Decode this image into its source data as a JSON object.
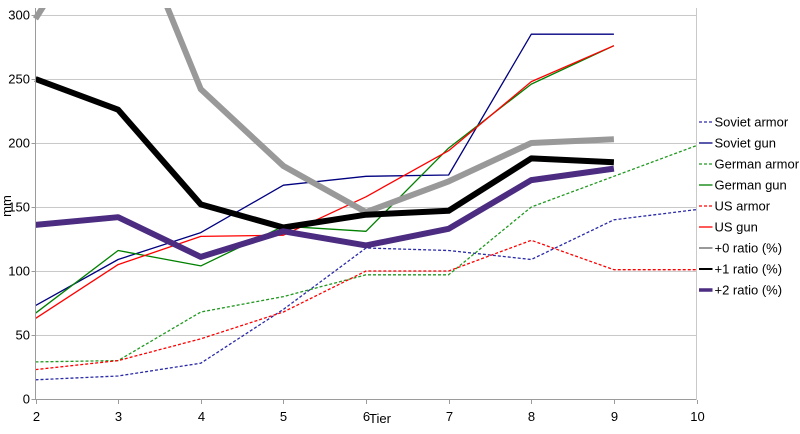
{
  "chart_data": {
    "type": "line",
    "title": "",
    "xlabel": "Tier",
    "ylabel": "mm",
    "x": [
      2,
      3,
      4,
      5,
      6,
      7,
      8,
      9,
      10
    ],
    "xlim": [
      2,
      10
    ],
    "ylim": [
      0,
      300
    ],
    "yticks": [
      0,
      50,
      100,
      150,
      200,
      250,
      300
    ],
    "xticks": [
      2,
      3,
      4,
      5,
      6,
      7,
      8,
      9,
      10
    ],
    "grid": "horizontal",
    "legend_position": "right",
    "colors": {
      "soviet": "#000080",
      "soviet_dashed": "#2A2AA8",
      "german": "#008000",
      "german_dashed": "#229922",
      "us": "#FF0000",
      "ratio0": "#999999",
      "ratio1": "#000000",
      "ratio2": "#4B2C80",
      "grid": "#C9C9C9",
      "axis": "#9B9B9B"
    },
    "series": [
      {
        "name": "Soviet armor",
        "color": "#2A2AA8",
        "dashed": true,
        "thick": false,
        "values": [
          15,
          18,
          28,
          70,
          118,
          116,
          109,
          140,
          148
        ]
      },
      {
        "name": "Soviet gun",
        "color": "#000080",
        "dashed": false,
        "thick": false,
        "values": [
          73,
          109,
          130,
          167,
          174,
          175,
          285,
          285,
          null
        ]
      },
      {
        "name": "German armor",
        "color": "#229922",
        "dashed": true,
        "thick": false,
        "values": [
          29,
          30,
          68,
          80,
          97,
          97,
          150,
          174,
          198
        ]
      },
      {
        "name": "German gun",
        "color": "#008000",
        "dashed": false,
        "thick": false,
        "values": [
          67,
          116,
          104,
          135,
          131,
          196,
          246,
          276,
          null
        ]
      },
      {
        "name": "US armor",
        "color": "#FF0000",
        "dashed": true,
        "thick": false,
        "values": [
          23,
          30,
          47,
          68,
          100,
          100,
          124,
          101,
          101
        ]
      },
      {
        "name": "US gun",
        "color": "#FF0000",
        "dashed": false,
        "thick": false,
        "values": [
          63,
          105,
          127,
          128,
          158,
          194,
          248,
          276,
          null
        ]
      },
      {
        "name": "+0 ratio (%)",
        "color": "#999999",
        "dashed": false,
        "thick": true,
        "values": [
          297,
          400,
          242,
          182,
          146,
          170,
          200,
          203,
          null
        ]
      },
      {
        "name": "+1 ratio (%)",
        "color": "#000000",
        "dashed": false,
        "thick": true,
        "values": [
          250,
          226,
          152,
          134,
          144,
          147,
          188,
          185,
          null
        ]
      },
      {
        "name": "+2 ratio (%)",
        "color": "#4B2C80",
        "dashed": false,
        "thick": true,
        "values": [
          136,
          142,
          111,
          131,
          120,
          133,
          171,
          180,
          null
        ]
      }
    ]
  }
}
